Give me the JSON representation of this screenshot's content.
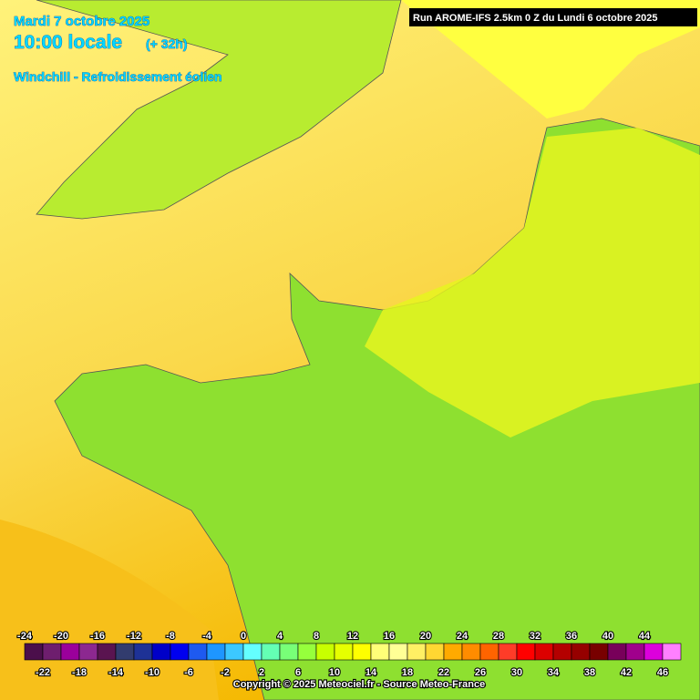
{
  "header": {
    "date": "Mardi 7 octobre 2025",
    "time": "10:00 locale",
    "lead": "(+ 32h)",
    "subtitle": "Windchill - Refroidissement éolien",
    "run": "Run AROME-IFS 2.5km 0 Z du Lundi 6 octobre 2025"
  },
  "legend": {
    "ticks": [
      -24,
      -22,
      -20,
      -18,
      -16,
      -14,
      -12,
      -10,
      -8,
      -6,
      -4,
      -2,
      0,
      2,
      4,
      6,
      8,
      10,
      12,
      14,
      16,
      18,
      20,
      22,
      24,
      26,
      28,
      30,
      32,
      34,
      36,
      38,
      40,
      42,
      44,
      46
    ],
    "colors": [
      "#4b0f4b",
      "#6e1e6e",
      "#9b009b",
      "#8c2890",
      "#5a1450",
      "#323c6e",
      "#1e3296",
      "#0000c8",
      "#0000f0",
      "#1e5af0",
      "#1e96ff",
      "#3cc8ff",
      "#64ffff",
      "#64ffb4",
      "#78ff78",
      "#96ff3c",
      "#c8ff00",
      "#e6ff00",
      "#ffff00",
      "#ffff78",
      "#ffff96",
      "#fff064",
      "#ffd732",
      "#ffaa00",
      "#ff8c00",
      "#ff6400",
      "#ff3c28",
      "#ff0000",
      "#dc0000",
      "#b40000",
      "#960000",
      "#780000",
      "#78005a",
      "#a0008c",
      "#dc00dc",
      "#ff80ff"
    ]
  },
  "footer": "Copyright © 2025 Meteociel.fr - Source Meteo-France"
}
